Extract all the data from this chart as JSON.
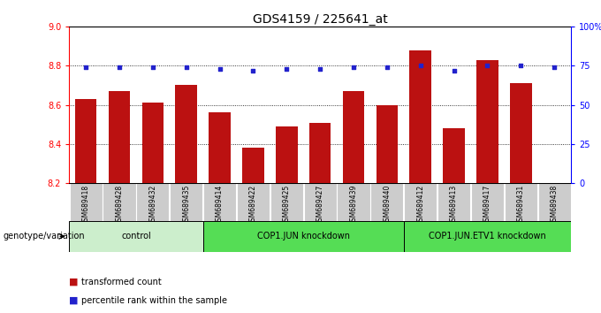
{
  "title": "GDS4159 / 225641_at",
  "samples": [
    "GSM689418",
    "GSM689428",
    "GSM689432",
    "GSM689435",
    "GSM689414",
    "GSM689422",
    "GSM689425",
    "GSM689427",
    "GSM689439",
    "GSM689440",
    "GSM689412",
    "GSM689413",
    "GSM689417",
    "GSM689431",
    "GSM689438"
  ],
  "bar_values": [
    8.63,
    8.67,
    8.61,
    8.7,
    8.56,
    8.38,
    8.49,
    8.51,
    8.67,
    8.6,
    8.88,
    8.48,
    8.83,
    8.71,
    8.2
  ],
  "dot_values": [
    74,
    74,
    74,
    74,
    73,
    72,
    73,
    73,
    74,
    74,
    75,
    72,
    75,
    75,
    74
  ],
  "ylim_left": [
    8.2,
    9.0
  ],
  "ylim_right": [
    0,
    100
  ],
  "yticks_left": [
    8.2,
    8.4,
    8.6,
    8.8,
    9.0
  ],
  "yticks_right": [
    0,
    25,
    50,
    75,
    100
  ],
  "ytick_labels_right": [
    "0",
    "25",
    "50",
    "75",
    "100%"
  ],
  "bar_color": "#bb1111",
  "dot_color": "#2222cc",
  "grid_lines": [
    8.4,
    8.6,
    8.8
  ],
  "groups": [
    {
      "label": "control",
      "start": 0,
      "end": 4,
      "color": "#cceecc"
    },
    {
      "label": "COP1.JUN knockdown",
      "start": 4,
      "end": 10,
      "color": "#55dd55"
    },
    {
      "label": "COP1.JUN.ETV1 knockdown",
      "start": 10,
      "end": 15,
      "color": "#55dd55"
    }
  ],
  "legend_items": [
    {
      "label": "transformed count",
      "color": "#bb1111"
    },
    {
      "label": "percentile rank within the sample",
      "color": "#2222cc"
    }
  ],
  "genotype_label": "genotype/variation",
  "baseline": 8.2,
  "xtick_bg": "#cccccc",
  "plot_border_color": "#000000"
}
